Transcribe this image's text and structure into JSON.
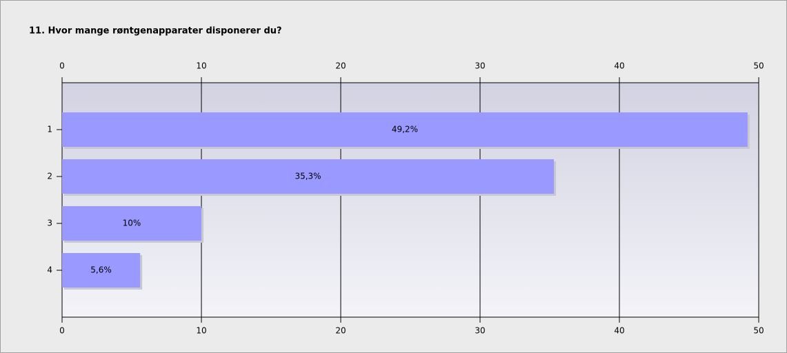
{
  "chart_data": {
    "type": "bar",
    "orientation": "horizontal",
    "title": "11. Hvor mange røntgenapparater disponerer du?",
    "categories": [
      "1",
      "2",
      "3",
      "4"
    ],
    "values": [
      49.2,
      35.3,
      10,
      5.6
    ],
    "value_labels": [
      "49,2%",
      "35,3%",
      "10%",
      "5,6%"
    ],
    "color": "#9999ff",
    "xlim": [
      0,
      50
    ],
    "xticks": [
      0,
      10,
      20,
      30,
      40,
      50
    ],
    "grid": true
  }
}
